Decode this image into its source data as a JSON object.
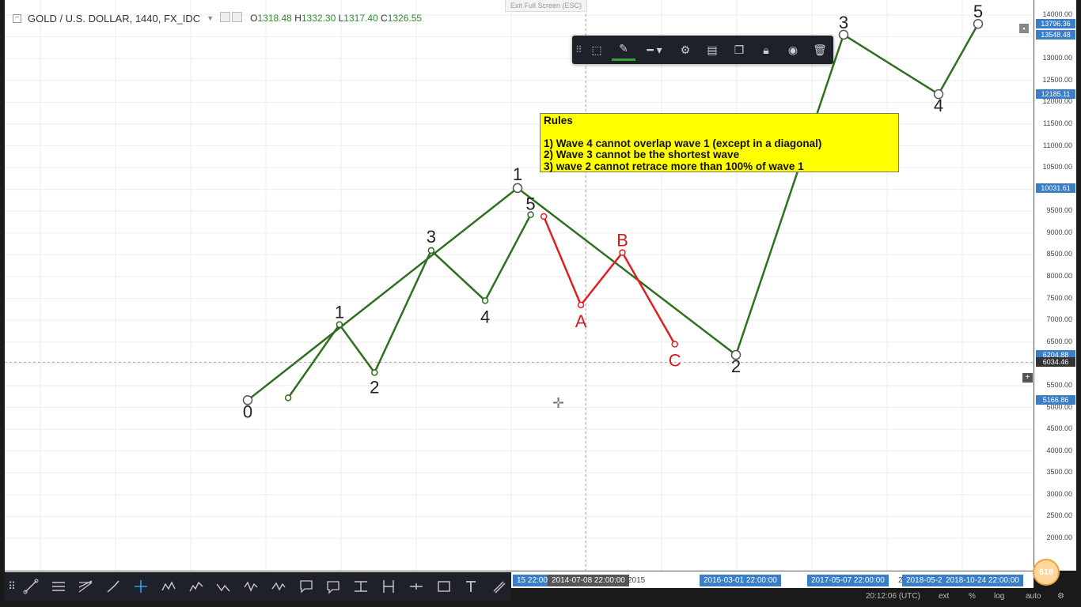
{
  "header": {
    "symbol": "GOLD / U.S. DOLLAR, 1440, FX_IDC",
    "open_label": "O",
    "open": "1318.48",
    "high_label": "H",
    "high": "1332.30",
    "low_label": "L",
    "low": "1317.40",
    "close_label": "C",
    "close": "1326.55"
  },
  "exit_fullscreen": "Exit Full Screen (ESC)",
  "drawing_toolbar": {
    "items": [
      "grip-icon",
      "rectangle-select-icon",
      "pencil-icon",
      "line-style-icon",
      "gear-icon",
      "layers-icon",
      "copy-icon",
      "lock-icon",
      "eye-icon",
      "trash-icon"
    ],
    "accent": "#37a33a"
  },
  "rules": {
    "title": "Rules",
    "items": [
      "1) Wave 4 cannot overlap wave 1 (except in a diagonal)",
      "2) Wave 3 cannot be the shortest wave",
      "3) wave 2 cannot retrace more than 100% of wave 1"
    ]
  },
  "chart_data": {
    "type": "line",
    "title": "GOLD / U.S. DOLLAR, 1440, FX_IDC",
    "ylim": [
      1700,
      14200
    ],
    "y_ticks": [
      2000,
      2500,
      3000,
      3500,
      4000,
      4500,
      5000,
      5500,
      6000,
      6500,
      7000,
      7500,
      8000,
      8500,
      9000,
      9500,
      10000,
      10500,
      11000,
      11500,
      12000,
      12500,
      13000,
      13500,
      14000
    ],
    "y_tick_labels": [
      "2000.00",
      "2500.00",
      "3000.00",
      "3500.00",
      "4000.00",
      "4500.00",
      "5000.00",
      "5500.00",
      "6000.00",
      "6500.00",
      "7000.00",
      "7500.00",
      "8000.00",
      "8500.00",
      "9000.00",
      "9500.00",
      "10000.00",
      "10500.00",
      "11000.00",
      "11500.00",
      "12000.00",
      "12500.00",
      "13000.00",
      "13500.00",
      "14000.00"
    ],
    "price_labels": [
      {
        "value": 13796.36,
        "text": "13796.36",
        "style": "blue"
      },
      {
        "value": 13548.48,
        "text": "13548.48",
        "style": "blue"
      },
      {
        "value": 12185.11,
        "text": "12185.11",
        "style": "blue"
      },
      {
        "value": 10031.61,
        "text": "10031.61",
        "style": "blue"
      },
      {
        "value": 6204.88,
        "text": "6204.88",
        "style": "blue"
      },
      {
        "value": 6034.46,
        "text": "6034.46",
        "style": "dark"
      },
      {
        "value": 5166.86,
        "text": "5166.86",
        "style": "blue"
      }
    ],
    "crosshair_price": 6034.46,
    "x_labels": [
      {
        "text": "15 22:00",
        "style": "blue"
      },
      {
        "text": "2014-07-08 22:00:00",
        "style": "dark"
      },
      {
        "text": "2015",
        "style": "plain"
      },
      {
        "text": "2016-03-01 22:00:00",
        "style": "blue"
      },
      {
        "text": "2017-05-07 22:00:00",
        "style": "blue"
      },
      {
        "text": "2",
        "style": "plain"
      },
      {
        "text": "2018-05-2",
        "style": "blue"
      },
      {
        "text": "2018-10-24 22:00:00",
        "style": "blue"
      }
    ],
    "series": [
      {
        "name": "",
        "color": "#2f6f1f",
        "points": [
          {
            "t": 0,
            "y": 5166.86,
            "label": "0"
          },
          {
            "t": 1,
            "y": 10031.61,
            "label": "1"
          },
          {
            "t": 2,
            "y": 6204.88,
            "label": "2"
          },
          {
            "t": 3,
            "y": 13548.48,
            "label": "3"
          },
          {
            "t": 4,
            "y": 12185.11,
            "label": "4"
          },
          {
            "t": 5,
            "y": 13796.36,
            "label": "5"
          }
        ]
      },
      {
        "name": "",
        "color": "#2f6f1f",
        "points": [
          {
            "t": 0.15,
            "y": 5220,
            "label": ""
          },
          {
            "t": 0.34,
            "y": 6900,
            "label": "1"
          },
          {
            "t": 0.47,
            "y": 5800,
            "label": "2"
          },
          {
            "t": 0.68,
            "y": 8600,
            "label": "3"
          },
          {
            "t": 0.88,
            "y": 7450,
            "label": "4"
          },
          {
            "t": 1.06,
            "y": 9420,
            "label": "5"
          }
        ]
      },
      {
        "name": "",
        "color": "#e02020",
        "points": [
          {
            "t": 1.12,
            "y": 9380,
            "label": ""
          },
          {
            "t": 1.29,
            "y": 7350,
            "label": "A"
          },
          {
            "t": 1.48,
            "y": 8550,
            "label": "B"
          },
          {
            "t": 1.72,
            "y": 6450,
            "label": "C"
          }
        ]
      }
    ]
  },
  "tools": [
    "trend-line-icon",
    "horizontal-lines-icon",
    "fib-icon",
    "brush-icon",
    "crosshair-icon",
    "pattern-icon",
    "elliott-impulse-icon",
    "elliott-correction-icon",
    "elliott-triangle-icon",
    "elliott-double-icon",
    "callout-icon",
    "comment-icon",
    "ranges-icon",
    "date-range-icon",
    "measure-icon",
    "rectangle-icon",
    "text-icon",
    "magnet-icon"
  ],
  "status": {
    "time": "20:12:06 (UTC)",
    "ext": "ext",
    "percent": "%",
    "log": "log",
    "auto": "auto"
  },
  "badge": "618"
}
